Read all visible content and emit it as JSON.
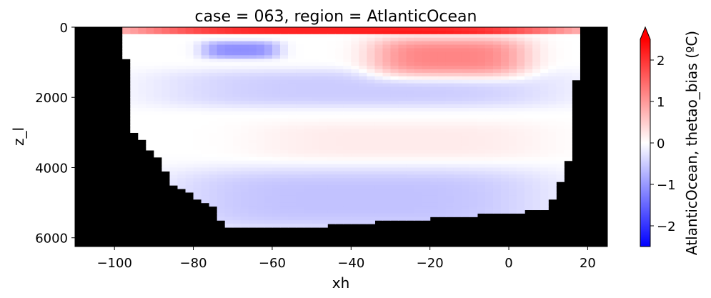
{
  "chart_data": {
    "type": "heatmap",
    "title": "case = 063, region = AtlanticOcean",
    "xlabel": "xh",
    "ylabel": "z_l",
    "xlim": [
      -110,
      25
    ],
    "ylim": [
      6250,
      0
    ],
    "y_inverted": true,
    "xticks": [
      -100,
      -80,
      -60,
      -40,
      -20,
      0,
      20
    ],
    "xtick_labels": [
      "−100",
      "−80",
      "−60",
      "−40",
      "−20",
      "0",
      "20"
    ],
    "yticks": [
      0,
      2000,
      4000,
      6000
    ],
    "ytick_labels": [
      "0",
      "2000",
      "4000",
      "6000"
    ],
    "colorbar": {
      "label": "AtlanticOcean, thetao_bias (ºC)",
      "vmin": -2.5,
      "vmax": 2.5,
      "ticks": [
        -2,
        -1,
        0,
        1,
        2
      ],
      "tick_labels": [
        "−2",
        "−1",
        "0",
        "1",
        "2"
      ],
      "extend": "max",
      "colormap": "bwr"
    },
    "land_color": "#000000",
    "ocean_bounds_approx": [
      {
        "depth": 200,
        "x_west": -98,
        "x_east": 18
      },
      {
        "depth": 1500,
        "x_west": -96,
        "x_east": 17
      },
      {
        "depth": 3000,
        "x_west": -95,
        "x_east": 16
      },
      {
        "depth": 3800,
        "x_west": -88,
        "x_east": 15
      },
      {
        "depth": 4400,
        "x_west": -86,
        "x_east": 13
      },
      {
        "depth": 5200,
        "x_west": -74,
        "x_east": 10
      },
      {
        "depth": 5700,
        "x_west": -72,
        "x_east": -52
      }
    ],
    "bias_features_approx": [
      {
        "label": "surface warm band",
        "x_range": [
          -98,
          18
        ],
        "depth_range": [
          0,
          200
        ],
        "value": 2.3
      },
      {
        "label": "upper west cool patch",
        "x_range": [
          -78,
          -58
        ],
        "depth_range": [
          400,
          900
        ],
        "value": -1.1
      },
      {
        "label": "subtropical warm lens",
        "x_range": [
          -35,
          5
        ],
        "depth_range": [
          300,
          1500
        ],
        "value": 1.2
      },
      {
        "label": "intermediate cool band",
        "x_range": [
          -90,
          15
        ],
        "depth_range": [
          1200,
          2300
        ],
        "value": -0.5
      },
      {
        "label": "deep slight warm",
        "x_range": [
          -65,
          10
        ],
        "depth_range": [
          2700,
          3800
        ],
        "value": 0.2
      },
      {
        "label": "abyssal cool",
        "x_range": [
          -88,
          12
        ],
        "depth_range": [
          4000,
          5800
        ],
        "value": -0.6
      }
    ]
  }
}
